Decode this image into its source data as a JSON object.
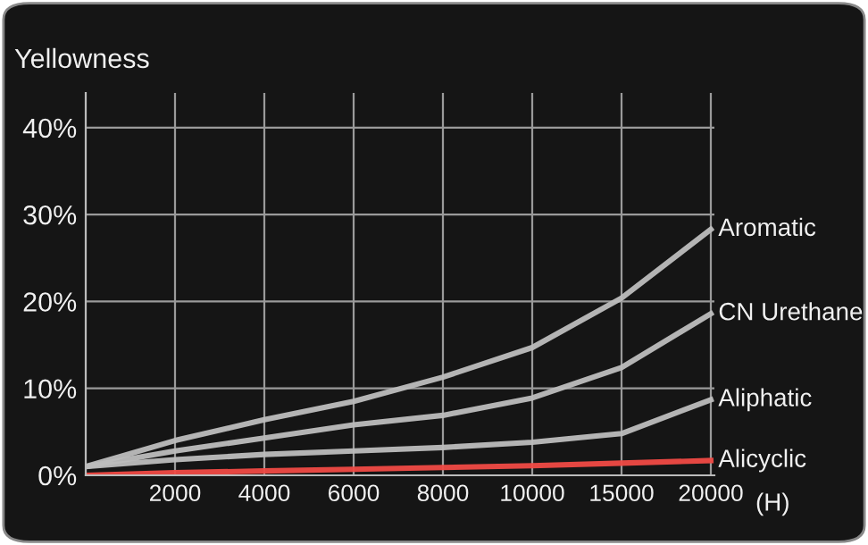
{
  "chart_data": {
    "type": "line",
    "ylabel": "Yellowness",
    "xlabel": "(H)",
    "categories": [
      null,
      "2000",
      "4000",
      "6000",
      "8000",
      "10000",
      "15000",
      "20000"
    ],
    "series": [
      {
        "name": "Aromatic",
        "color": "#bdbdbd",
        "values": [
          1,
          4,
          6.4,
          8.5,
          11.3,
          14.7,
          20.4,
          28.3
        ]
      },
      {
        "name": "CN Urethane",
        "color": "#bdbdbd",
        "values": [
          1,
          2.8,
          4.3,
          5.8,
          6.9,
          8.9,
          12.4,
          18.6
        ]
      },
      {
        "name": "Aliphatic",
        "color": "#bdbdbd",
        "values": [
          1,
          1.8,
          2.4,
          2.8,
          3.2,
          3.8,
          4.8,
          8.7
        ]
      },
      {
        "name": "Alicyclic",
        "color": "#f04a45",
        "values": [
          0,
          0.3,
          0.5,
          0.7,
          0.9,
          1.1,
          1.4,
          1.7
        ]
      }
    ],
    "ylim": [
      0,
      44
    ],
    "yticks": [
      {
        "value": 0,
        "label": "0%"
      },
      {
        "value": 10,
        "label": "10%"
      },
      {
        "value": 20,
        "label": "20%"
      },
      {
        "value": 30,
        "label": "30%"
      },
      {
        "value": 40,
        "label": "40%"
      }
    ],
    "grid": true,
    "legend": false,
    "marker": "none",
    "line_style": "solid"
  }
}
